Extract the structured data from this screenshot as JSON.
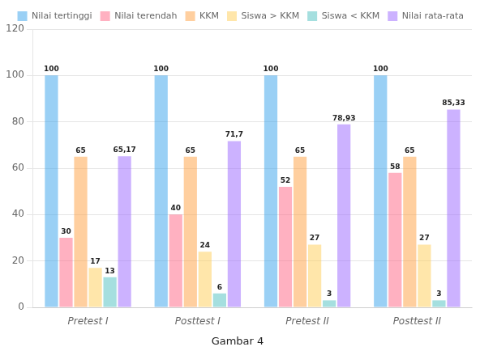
{
  "chart_data": {
    "type": "bar",
    "categories": [
      "Pretest I",
      "Posttest I",
      "Pretest II",
      "Posttest II"
    ],
    "series": [
      {
        "name": "Nilai tertinggi",
        "values": [
          100,
          100,
          100,
          100
        ]
      },
      {
        "name": "Nilai terendah",
        "values": [
          30,
          40,
          52,
          58
        ]
      },
      {
        "name": "KKM",
        "values": [
          65,
          65,
          65,
          65
        ]
      },
      {
        "name": "Siswa > KKM",
        "values": [
          17,
          24,
          27,
          27
        ]
      },
      {
        "name": "Siswa < KKM",
        "values": [
          13,
          6,
          3,
          3
        ]
      },
      {
        "name": "Nilai rata-rata",
        "values": [
          65.17,
          71.7,
          78.93,
          85.33
        ],
        "value_labels": [
          "65,17",
          "71,7",
          "78,93",
          "85,33"
        ]
      }
    ],
    "ylim": [
      0,
      120
    ],
    "yticks": [
      0,
      20,
      40,
      60,
      80,
      100,
      120
    ],
    "grid": true,
    "legend": "upper right",
    "data_labels": true,
    "caption": "Gambar 4"
  }
}
